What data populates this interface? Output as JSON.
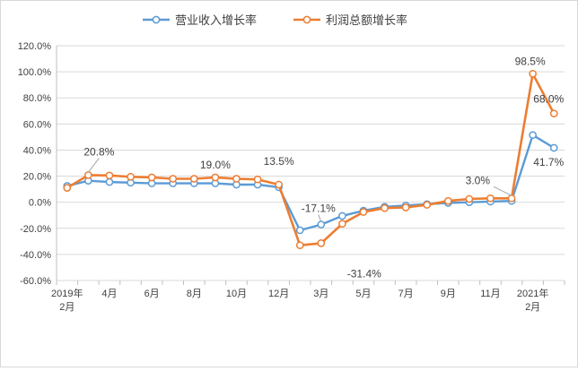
{
  "chart_data": {
    "type": "line",
    "title": "",
    "xlabel": "",
    "ylabel": "",
    "ylim": [
      -60,
      120
    ],
    "y_ticks": [
      -60,
      -40,
      -20,
      0,
      20,
      40,
      60,
      80,
      100,
      120
    ],
    "y_tick_labels": [
      "-60.0%",
      "-40.0%",
      "-20.0%",
      "0.0%",
      "20.0%",
      "40.0%",
      "60.0%",
      "80.0%",
      "100.0%",
      "120.0%"
    ],
    "grid": "horizontal",
    "legend_position": "top",
    "x_tick_labels": [
      {
        "index": 0,
        "line1": "2019年",
        "line2": "2月"
      },
      {
        "index": 2,
        "line1": "4月",
        "line2": ""
      },
      {
        "index": 4,
        "line1": "6月",
        "line2": ""
      },
      {
        "index": 6,
        "line1": "8月",
        "line2": ""
      },
      {
        "index": 8,
        "line1": "10月",
        "line2": ""
      },
      {
        "index": 10,
        "line1": "12月",
        "line2": ""
      },
      {
        "index": 12,
        "line1": "3月",
        "line2": ""
      },
      {
        "index": 14,
        "line1": "5月",
        "line2": ""
      },
      {
        "index": 16,
        "line1": "7月",
        "line2": ""
      },
      {
        "index": 18,
        "line1": "9月",
        "line2": ""
      },
      {
        "index": 20,
        "line1": "11月",
        "line2": ""
      },
      {
        "index": 22,
        "line1": "2021年",
        "line2": "2月"
      }
    ],
    "series": [
      {
        "name": "营业收入增长率",
        "color": "#5b9bd5",
        "values": [
          12.5,
          16.5,
          15.5,
          15.0,
          14.5,
          14.5,
          14.5,
          14.5,
          13.5,
          13.5,
          11.5,
          -21.5,
          -17.1,
          -10.5,
          -6.5,
          -3.5,
          -2.5,
          -1.5,
          -0.5,
          0.0,
          0.5,
          1.0,
          51.5,
          41.7
        ]
      },
      {
        "name": "利润总额增长率",
        "color": "#ed7d31",
        "values": [
          11.0,
          20.8,
          20.5,
          19.5,
          19.0,
          18.0,
          18.0,
          19.0,
          18.0,
          17.5,
          13.5,
          -33.0,
          -31.4,
          -16.5,
          -7.5,
          -4.5,
          -4.0,
          -2.0,
          1.0,
          2.5,
          3.0,
          3.0,
          98.5,
          68.0
        ]
      }
    ],
    "annotations": [
      {
        "text": "20.8%",
        "series": 1,
        "index": 1
      },
      {
        "text": "19.0%",
        "series": 1,
        "index": 7
      },
      {
        "text": "13.5%",
        "series": 1,
        "index": 10
      },
      {
        "text": "-17.1%",
        "series": 0,
        "index": 12
      },
      {
        "text": "-31.4%",
        "series": 1,
        "index": 12
      },
      {
        "text": "3.0%",
        "series": 1,
        "index": 21
      },
      {
        "text": "98.5%",
        "series": 1,
        "index": 22
      },
      {
        "text": "68.0%",
        "series": 1,
        "index": 23
      },
      {
        "text": "41.7%",
        "series": 0,
        "index": 23
      }
    ]
  }
}
